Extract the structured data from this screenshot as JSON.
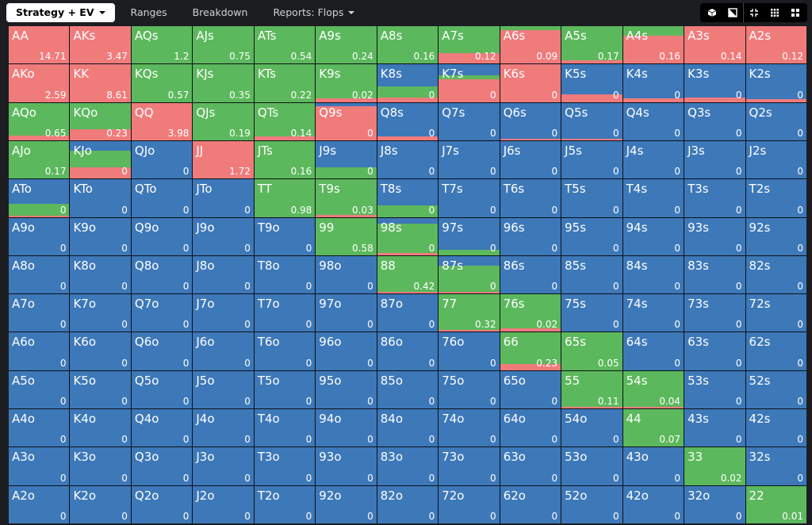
{
  "tabs": [
    {
      "label": "Strategy + EV",
      "active": true,
      "dropdown": true
    },
    {
      "label": "Ranges",
      "active": false,
      "dropdown": false
    },
    {
      "label": "Breakdown",
      "active": false,
      "dropdown": false
    },
    {
      "label": "Reports: Flops",
      "active": false,
      "dropdown": true
    }
  ],
  "toolbar_icons": [
    "cube-icon",
    "contrast-icon",
    "compress-icon",
    "grid-icon",
    "large-grid-icon"
  ],
  "colors": {
    "raise": "#f07b7b",
    "call": "#5cb85c",
    "fold": "#3d78b9"
  },
  "matrix": {
    "rows": [
      [
        [
          "AA",
          "14.71",
          1,
          0
        ],
        [
          "AKs",
          "3.47",
          1,
          0
        ],
        [
          "AQs",
          "1.2",
          0,
          0
        ],
        [
          "AJs",
          "0.75",
          0,
          0
        ],
        [
          "ATs",
          "0.54",
          0,
          0
        ],
        [
          "A9s",
          "0.24",
          0,
          0
        ],
        [
          "A8s",
          "0.16",
          0,
          0
        ],
        [
          "A7s",
          "0.12",
          0.29,
          0
        ],
        [
          "A6s",
          "0.09",
          0.9,
          0
        ],
        [
          "A5s",
          "0.17",
          0.1,
          0
        ],
        [
          "A4s",
          "0.16",
          0.75,
          0
        ],
        [
          "A3s",
          "0.14",
          1,
          0
        ],
        [
          "A2s",
          "0.12",
          1,
          0
        ]
      ],
      [
        [
          "AKo",
          "2.59",
          1,
          0
        ],
        [
          "KK",
          "8.61",
          1,
          0
        ],
        [
          "KQs",
          "0.57",
          0,
          0
        ],
        [
          "KJs",
          "0.35",
          0,
          0
        ],
        [
          "KTs",
          "0.22",
          0,
          0
        ],
        [
          "K9s",
          "0.02",
          0.1,
          0
        ],
        [
          "K8s",
          "0",
          0.12,
          0.3
        ],
        [
          "K7s",
          "0",
          0.6,
          0.1
        ],
        [
          "K6s",
          "0",
          1,
          0
        ],
        [
          "K5s",
          "0",
          0.2,
          0
        ],
        [
          "K4s",
          "0",
          0.1,
          0
        ],
        [
          "K3s",
          "0",
          0.12,
          0
        ],
        [
          "K2s",
          "0",
          0.08,
          0
        ]
      ],
      [
        [
          "AQo",
          "0.65",
          0.12,
          0
        ],
        [
          "KQo",
          "0.23",
          0.3,
          0
        ],
        [
          "QQ",
          "3.98",
          1,
          0
        ],
        [
          "QJs",
          "0.19",
          0,
          0
        ],
        [
          "QTs",
          "0.14",
          0.1,
          0
        ],
        [
          "Q9s",
          "0",
          0.9,
          0
        ],
        [
          "Q8s",
          "0",
          0.1,
          0
        ],
        [
          "Q7s",
          "0",
          0,
          0
        ],
        [
          "Q6s",
          "0",
          0.05,
          0
        ],
        [
          "Q5s",
          "0",
          0.05,
          0
        ],
        [
          "Q4s",
          "0",
          0,
          0
        ],
        [
          "Q3s",
          "0",
          0,
          0
        ],
        [
          "Q2s",
          "0",
          0,
          0
        ]
      ],
      [
        [
          "AJo",
          "0.17",
          0,
          0
        ],
        [
          "KJo",
          "0",
          0.3,
          0.45
        ],
        [
          "QJo",
          "0",
          0,
          0
        ],
        [
          "JJ",
          "1.72",
          1,
          0
        ],
        [
          "JTs",
          "0.16",
          0,
          0
        ],
        [
          "J9s",
          "0",
          0,
          0.3
        ],
        [
          "J8s",
          "0",
          0,
          0
        ],
        [
          "J7s",
          "0",
          0,
          0
        ],
        [
          "J6s",
          "0",
          0,
          0
        ],
        [
          "J5s",
          "0",
          0,
          0
        ],
        [
          "J4s",
          "0",
          0,
          0
        ],
        [
          "J3s",
          "0",
          0,
          0
        ],
        [
          "J2s",
          "0",
          0,
          0
        ]
      ],
      [
        [
          "ATo",
          "0",
          0.04,
          0.3
        ],
        [
          "KTo",
          "0",
          0,
          0
        ],
        [
          "QTo",
          "0",
          0,
          0
        ],
        [
          "JTo",
          "0",
          0,
          0
        ],
        [
          "TT",
          "0.98",
          0,
          0
        ],
        [
          "T9s",
          "0.03",
          0.05,
          0
        ],
        [
          "T8s",
          "0",
          0,
          0.3
        ],
        [
          "T7s",
          "0",
          0,
          0
        ],
        [
          "T6s",
          "0",
          0,
          0
        ],
        [
          "T5s",
          "0",
          0,
          0
        ],
        [
          "T4s",
          "0",
          0,
          0
        ],
        [
          "T3s",
          "0",
          0,
          0
        ],
        [
          "T2s",
          "0",
          0,
          0
        ]
      ],
      [
        [
          "A9o",
          "0",
          0,
          0
        ],
        [
          "K9o",
          "0",
          0,
          0
        ],
        [
          "Q9o",
          "0",
          0,
          0
        ],
        [
          "J9o",
          "0",
          0,
          0
        ],
        [
          "T9o",
          "0",
          0,
          0
        ],
        [
          "99",
          "0.58",
          0,
          0
        ],
        [
          "98s",
          "0",
          0.05,
          0.8
        ],
        [
          "97s",
          "0",
          0,
          0.15
        ],
        [
          "96s",
          "0",
          0,
          0
        ],
        [
          "95s",
          "0",
          0,
          0
        ],
        [
          "94s",
          "0",
          0,
          0
        ],
        [
          "93s",
          "0",
          0,
          0
        ],
        [
          "92s",
          "0",
          0,
          0
        ]
      ],
      [
        [
          "A8o",
          "0",
          0,
          0
        ],
        [
          "K8o",
          "0",
          0,
          0
        ],
        [
          "Q8o",
          "0",
          0,
          0
        ],
        [
          "J8o",
          "0",
          0,
          0
        ],
        [
          "T8o",
          "0",
          0,
          0
        ],
        [
          "98o",
          "0",
          0,
          0
        ],
        [
          "88",
          "0.42",
          0.05,
          0
        ],
        [
          "87s",
          "0",
          0.05,
          0.7
        ],
        [
          "86s",
          "0",
          0,
          0
        ],
        [
          "85s",
          "0",
          0,
          0
        ],
        [
          "84s",
          "0",
          0,
          0
        ],
        [
          "83s",
          "0",
          0,
          0
        ],
        [
          "82s",
          "0",
          0,
          0
        ]
      ],
      [
        [
          "A7o",
          "0",
          0,
          0
        ],
        [
          "K7o",
          "0",
          0,
          0
        ],
        [
          "Q7o",
          "0",
          0,
          0
        ],
        [
          "J7o",
          "0",
          0,
          0
        ],
        [
          "T7o",
          "0",
          0,
          0
        ],
        [
          "97o",
          "0",
          0,
          0
        ],
        [
          "87o",
          "0",
          0,
          0
        ],
        [
          "77",
          "0.32",
          0.05,
          0
        ],
        [
          "76s",
          "0.02",
          0.1,
          0
        ],
        [
          "75s",
          "0",
          0,
          0
        ],
        [
          "74s",
          "0",
          0,
          0
        ],
        [
          "73s",
          "0",
          0,
          0
        ],
        [
          "72s",
          "0",
          0,
          0
        ]
      ],
      [
        [
          "A6o",
          "0",
          0,
          0
        ],
        [
          "K6o",
          "0",
          0,
          0
        ],
        [
          "Q6o",
          "0",
          0,
          0
        ],
        [
          "J6o",
          "0",
          0,
          0
        ],
        [
          "T6o",
          "0",
          0,
          0
        ],
        [
          "96o",
          "0",
          0,
          0
        ],
        [
          "86o",
          "0",
          0,
          0
        ],
        [
          "76o",
          "0",
          0,
          0
        ],
        [
          "66",
          "0.23",
          0.17,
          0
        ],
        [
          "65s",
          "0.05",
          0,
          0
        ],
        [
          "64s",
          "0",
          0,
          0
        ],
        [
          "63s",
          "0",
          0,
          0
        ],
        [
          "62s",
          "0",
          0,
          0
        ]
      ],
      [
        [
          "A5o",
          "0",
          0,
          0
        ],
        [
          "K5o",
          "0",
          0,
          0
        ],
        [
          "Q5o",
          "0",
          0,
          0
        ],
        [
          "J5o",
          "0",
          0,
          0
        ],
        [
          "T5o",
          "0",
          0,
          0
        ],
        [
          "95o",
          "0",
          0,
          0
        ],
        [
          "85o",
          "0",
          0,
          0
        ],
        [
          "75o",
          "0",
          0,
          0
        ],
        [
          "65o",
          "0",
          0,
          0
        ],
        [
          "55",
          "0.11",
          0.05,
          0
        ],
        [
          "54s",
          "0.04",
          0.05,
          0
        ],
        [
          "53s",
          "0",
          0,
          0
        ],
        [
          "52s",
          "0",
          0,
          0
        ]
      ],
      [
        [
          "A4o",
          "0",
          0,
          0
        ],
        [
          "K4o",
          "0",
          0,
          0
        ],
        [
          "Q4o",
          "0",
          0,
          0
        ],
        [
          "J4o",
          "0",
          0,
          0
        ],
        [
          "T4o",
          "0",
          0,
          0
        ],
        [
          "94o",
          "0",
          0,
          0
        ],
        [
          "84o",
          "0",
          0,
          0
        ],
        [
          "74o",
          "0",
          0,
          0
        ],
        [
          "64o",
          "0",
          0,
          0
        ],
        [
          "54o",
          "0",
          0,
          0
        ],
        [
          "44",
          "0.07",
          0,
          0
        ],
        [
          "43s",
          "0",
          0,
          0
        ],
        [
          "42s",
          "0",
          0,
          0
        ]
      ],
      [
        [
          "A3o",
          "0",
          0,
          0
        ],
        [
          "K3o",
          "0",
          0,
          0
        ],
        [
          "Q3o",
          "0",
          0,
          0
        ],
        [
          "J3o",
          "0",
          0,
          0
        ],
        [
          "T3o",
          "0",
          0,
          0
        ],
        [
          "93o",
          "0",
          0,
          0
        ],
        [
          "83o",
          "0",
          0,
          0
        ],
        [
          "73o",
          "0",
          0,
          0
        ],
        [
          "63o",
          "0",
          0,
          0
        ],
        [
          "53o",
          "0",
          0,
          0
        ],
        [
          "43o",
          "0",
          0,
          0
        ],
        [
          "33",
          "0.02",
          0,
          0
        ],
        [
          "32s",
          "0",
          0,
          0
        ]
      ],
      [
        [
          "A2o",
          "0",
          0,
          0
        ],
        [
          "K2o",
          "0",
          0,
          0
        ],
        [
          "Q2o",
          "0",
          0,
          0
        ],
        [
          "J2o",
          "0",
          0,
          0
        ],
        [
          "T2o",
          "0",
          0,
          0
        ],
        [
          "92o",
          "0",
          0,
          0
        ],
        [
          "82o",
          "0",
          0,
          0
        ],
        [
          "72o",
          "0",
          0,
          0
        ],
        [
          "62o",
          "0",
          0,
          0
        ],
        [
          "52o",
          "0",
          0,
          0
        ],
        [
          "42o",
          "0",
          0,
          0
        ],
        [
          "32o",
          "0",
          0,
          0
        ],
        [
          "22",
          "0.01",
          0,
          0
        ]
      ]
    ]
  }
}
